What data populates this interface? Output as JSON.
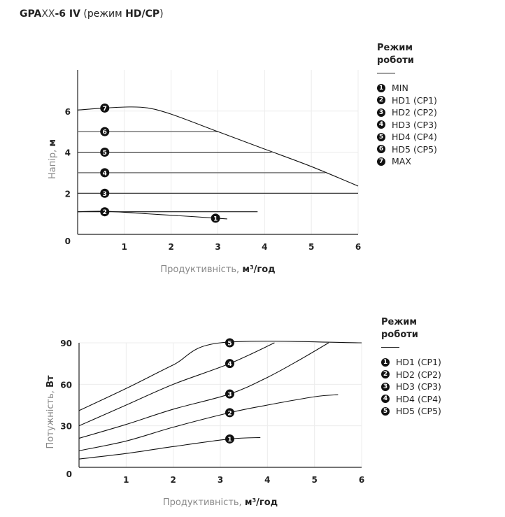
{
  "title": {
    "p1": "GPA",
    "p2": "XX",
    "p3": "-6 IV",
    "p4": " (режим ",
    "p5": "HD/CP",
    "p6": ")"
  },
  "chart_data": [
    {
      "type": "line",
      "xlabel": "Продуктивність, ",
      "xlabel_unit": "м³/год",
      "ylabel": "Напір, ",
      "ylabel_unit": "м",
      "xlim": [
        0,
        6
      ],
      "ylim": [
        0,
        8
      ],
      "xticks": [
        "1",
        "2",
        "3",
        "4",
        "5",
        "6"
      ],
      "yticks": [
        "0",
        "2",
        "4",
        "6"
      ],
      "grid": true,
      "legend": {
        "title_line1": "Режим",
        "title_line2": "роботи",
        "placement": "right"
      },
      "series": [
        {
          "name": "MIN",
          "marker": "1",
          "marker_x": 2.95,
          "color": "#111111",
          "points": [
            [
              0,
              1.1
            ],
            [
              0.6,
              1.12
            ],
            [
              1.5,
              1.0
            ],
            [
              2.5,
              0.86
            ],
            [
              3,
              0.78
            ],
            [
              3.2,
              0.75
            ]
          ]
        },
        {
          "name": "HD1 (CP1)",
          "marker": "2",
          "marker_x": 0.58,
          "color": "#111111",
          "points": [
            [
              0,
              1.1
            ],
            [
              3.85,
              1.1
            ]
          ]
        },
        {
          "name": "HD2 (CP2)",
          "marker": "3",
          "marker_x": 0.58,
          "color": "#111111",
          "points": [
            [
              0,
              2
            ],
            [
              6,
              2
            ]
          ]
        },
        {
          "name": "HD3 (CP3)",
          "marker": "4",
          "marker_x": 0.58,
          "color": "#777777",
          "points": [
            [
              0,
              3
            ],
            [
              5.3,
              3
            ]
          ]
        },
        {
          "name": "HD4 (CP4)",
          "marker": "5",
          "marker_x": 0.58,
          "color": "#111111",
          "points": [
            [
              0,
              4
            ],
            [
              4.15,
              4
            ]
          ]
        },
        {
          "name": "HD5 (CP5)",
          "marker": "6",
          "marker_x": 0.58,
          "color": "#777777",
          "points": [
            [
              0,
              5
            ],
            [
              3,
              5
            ]
          ]
        },
        {
          "name": "MAX",
          "marker": "7",
          "marker_x": 0.58,
          "color": "#111111",
          "points": [
            [
              0,
              6.05
            ],
            [
              0.6,
              6.15
            ],
            [
              1.1,
              6.2
            ],
            [
              1.5,
              6.15
            ],
            [
              2,
              5.85
            ],
            [
              3,
              5.0
            ],
            [
              4,
              4.15
            ],
            [
              5,
              3.3
            ],
            [
              6,
              2.35
            ]
          ]
        }
      ]
    },
    {
      "type": "line",
      "xlabel": "Продуктивність, ",
      "xlabel_unit": "м³/год",
      "ylabel": "Потужність, ",
      "ylabel_unit": "Вт",
      "xlim": [
        0,
        6
      ],
      "ylim": [
        0,
        90
      ],
      "xticks": [
        "1",
        "2",
        "3",
        "4",
        "5",
        "6"
      ],
      "yticks": [
        "0",
        "30",
        "60",
        "90"
      ],
      "grid": true,
      "legend": {
        "title_line1": "Режим",
        "title_line2": "роботи",
        "placement": "right"
      },
      "series": [
        {
          "name": "HD1 (CP1)",
          "marker": "1",
          "marker_x": 3.2,
          "color": "#111111",
          "points": [
            [
              0,
              6
            ],
            [
              1,
              10
            ],
            [
              2,
              15
            ],
            [
              3.2,
              20.5
            ],
            [
              3.85,
              21.5
            ]
          ]
        },
        {
          "name": "HD2 (CP2)",
          "marker": "2",
          "marker_x": 3.2,
          "color": "#111111",
          "points": [
            [
              0,
              12
            ],
            [
              1,
              19
            ],
            [
              2,
              29
            ],
            [
              3.2,
              39.5
            ],
            [
              4,
              45
            ],
            [
              5,
              51
            ],
            [
              5.5,
              52.5
            ]
          ]
        },
        {
          "name": "HD3 (CP3)",
          "marker": "3",
          "marker_x": 3.2,
          "color": "#111111",
          "points": [
            [
              0,
              21
            ],
            [
              1,
              31
            ],
            [
              2,
              42
            ],
            [
              3.2,
              53
            ],
            [
              4,
              65
            ],
            [
              4.7,
              78
            ],
            [
              5.3,
              90
            ]
          ]
        },
        {
          "name": "HD4 (CP4)",
          "marker": "4",
          "marker_x": 3.2,
          "color": "#111111",
          "points": [
            [
              0,
              30
            ],
            [
              1,
              45
            ],
            [
              2,
              60
            ],
            [
              3.2,
              75
            ],
            [
              4.15,
              90
            ]
          ]
        },
        {
          "name": "HD5 (CP5)",
          "marker": "5",
          "marker_x": 3.2,
          "color": "#111111",
          "points": [
            [
              0,
              41
            ],
            [
              1,
              57
            ],
            [
              2,
              74
            ],
            [
              3,
              90
            ],
            [
              6,
              90
            ]
          ]
        }
      ]
    }
  ]
}
